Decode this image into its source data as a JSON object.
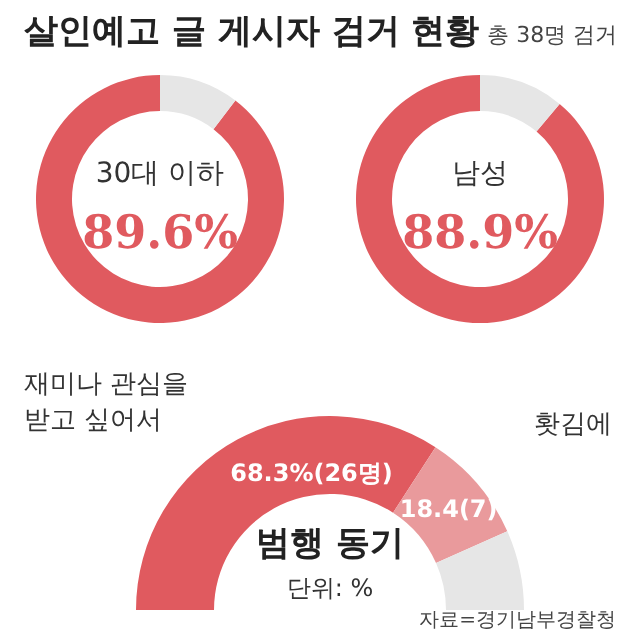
{
  "chart_data": [
    {
      "type": "other",
      "title": "살인예고 글 게시자 검거 현황",
      "subtitle": "총 38명 검거"
    },
    {
      "type": "donut",
      "categories": [
        "30대 이하",
        null
      ],
      "values": [
        89.6,
        10.4
      ],
      "colors": [
        "#e05a5f",
        "#e6e6e6"
      ],
      "value_labels": [
        "89.6%",
        null
      ]
    },
    {
      "type": "donut",
      "categories": [
        "남성",
        null
      ],
      "values": [
        88.9,
        11.1
      ],
      "colors": [
        "#e05a5f",
        "#e6e6e6"
      ],
      "value_labels": [
        "88.9%",
        null
      ]
    },
    {
      "type": "donut",
      "title": "범행 동기",
      "subtitle": "단위: %",
      "categories": [
        "재미나 관심을\n받고 싶어서",
        "홧김에",
        null
      ],
      "values": [
        68.3,
        18.4,
        13.3
      ],
      "colors": [
        "#e05a5f",
        "#e99a9c",
        "#e6e6e6"
      ],
      "value_labels": [
        "68.3%(26명)",
        "18.4(7)",
        null
      ],
      "annotations": [
        "자료=경기남부경찰청"
      ]
    }
  ]
}
